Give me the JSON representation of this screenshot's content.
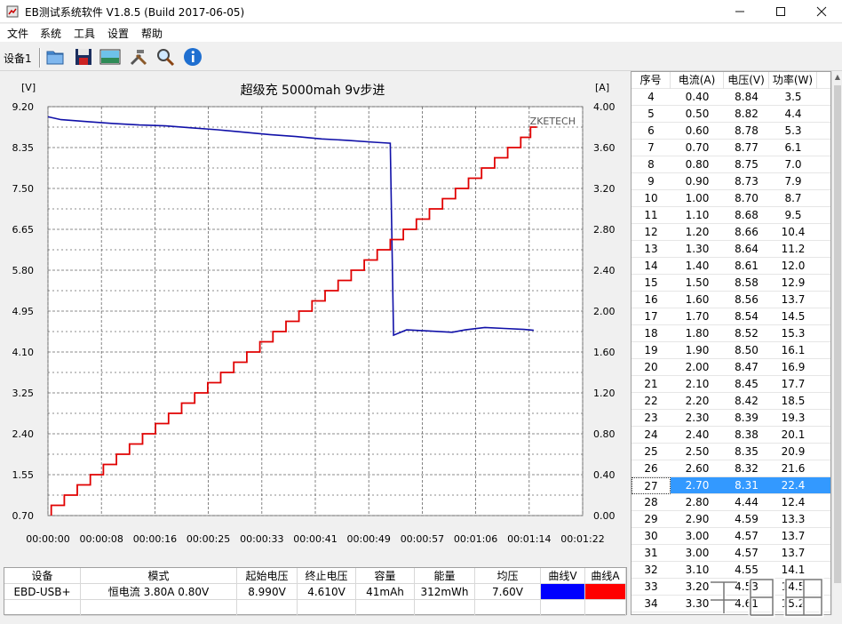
{
  "window": {
    "title": "EB测试系统软件 V1.8.5 (Build 2017-06-05)",
    "min_icon": "minimize-icon",
    "max_icon": "maximize-icon",
    "close_icon": "close-icon"
  },
  "menu": [
    "文件",
    "系统",
    "工具",
    "设置",
    "帮助"
  ],
  "toolbar": {
    "device_tab": "设备1",
    "tools": [
      "open-folder-icon",
      "save-disk-icon",
      "chart-picture-icon",
      "tools-icon",
      "search-icon",
      "info-icon"
    ]
  },
  "chart": {
    "brand": "ZKETECH",
    "colors": {
      "voltage": "#1010a8",
      "current": "#e00000"
    }
  },
  "chart_data": {
    "type": "line",
    "title": "超级充  5000mah  9v步进",
    "y_left_unit": "[V]",
    "y_right_unit": "[A]",
    "y_left_ticks": [
      "9.20",
      "8.35",
      "7.50",
      "6.65",
      "5.80",
      "4.95",
      "4.10",
      "3.25",
      "2.40",
      "1.55",
      "0.70"
    ],
    "y_right_ticks": [
      "4.00",
      "3.60",
      "3.20",
      "2.80",
      "2.40",
      "2.00",
      "1.60",
      "1.20",
      "0.80",
      "0.40",
      "0.00"
    ],
    "x_ticks": [
      "00:00:00",
      "00:00:08",
      "00:00:16",
      "00:00:25",
      "00:00:33",
      "00:00:41",
      "00:00:49",
      "00:00:57",
      "00:01:06",
      "00:01:14",
      "00:01:22"
    ],
    "ylim_left": [
      0.7,
      9.2
    ],
    "ylim_right": [
      0.0,
      4.0
    ],
    "xlim_seconds": [
      0,
      82
    ],
    "grid": true,
    "series": [
      {
        "name": "曲线V",
        "axis": "left",
        "points": [
          [
            0,
            8.99
          ],
          [
            2,
            8.93
          ],
          [
            6,
            8.89
          ],
          [
            10,
            8.85
          ],
          [
            14,
            8.82
          ],
          [
            18,
            8.8
          ],
          [
            22,
            8.76
          ],
          [
            26,
            8.72
          ],
          [
            30,
            8.67
          ],
          [
            34,
            8.62
          ],
          [
            38,
            8.58
          ],
          [
            42,
            8.53
          ],
          [
            46,
            8.5
          ],
          [
            50,
            8.46
          ],
          [
            52.5,
            8.44
          ],
          [
            53,
            4.45
          ],
          [
            55,
            4.56
          ],
          [
            58,
            4.54
          ],
          [
            62,
            4.51
          ],
          [
            64,
            4.56
          ],
          [
            67,
            4.61
          ],
          [
            70,
            4.59
          ],
          [
            73,
            4.57
          ],
          [
            74.5,
            4.55
          ]
        ]
      },
      {
        "name": "曲线A",
        "axis": "right",
        "points": [
          [
            0.5,
            0.0
          ],
          [
            0.5,
            0.1
          ],
          [
            2.5,
            0.2
          ],
          [
            4.5,
            0.3
          ],
          [
            6.5,
            0.4
          ],
          [
            8.5,
            0.5
          ],
          [
            10.5,
            0.6
          ],
          [
            12.5,
            0.7
          ],
          [
            14.5,
            0.8
          ],
          [
            16.5,
            0.9
          ],
          [
            18.5,
            1.0
          ],
          [
            20.5,
            1.1
          ],
          [
            22.5,
            1.2
          ],
          [
            24.5,
            1.3
          ],
          [
            26.5,
            1.4
          ],
          [
            28.5,
            1.5
          ],
          [
            30.5,
            1.6
          ],
          [
            32.5,
            1.7
          ],
          [
            34.5,
            1.8
          ],
          [
            36.5,
            1.9
          ],
          [
            38.5,
            2.0
          ],
          [
            40.5,
            2.1
          ],
          [
            42.5,
            2.2
          ],
          [
            44.5,
            2.3
          ],
          [
            46.5,
            2.4
          ],
          [
            48.5,
            2.5
          ],
          [
            50.5,
            2.6
          ],
          [
            52.5,
            2.7
          ],
          [
            54.5,
            2.8
          ],
          [
            56.5,
            2.9
          ],
          [
            58.5,
            3.0
          ],
          [
            60.5,
            3.1
          ],
          [
            62.5,
            3.2
          ],
          [
            64.5,
            3.3
          ],
          [
            66.5,
            3.4
          ],
          [
            68.5,
            3.5
          ],
          [
            70.5,
            3.6
          ],
          [
            72.5,
            3.7
          ],
          [
            74.0,
            3.8
          ]
        ]
      }
    ]
  },
  "table": {
    "headers": [
      "序号",
      "电流(A)",
      "电压(V)",
      "功率(W)"
    ],
    "selected_index": "27",
    "rows": [
      [
        "4",
        "0.40",
        "8.84",
        "3.5"
      ],
      [
        "5",
        "0.50",
        "8.82",
        "4.4"
      ],
      [
        "6",
        "0.60",
        "8.78",
        "5.3"
      ],
      [
        "7",
        "0.70",
        "8.77",
        "6.1"
      ],
      [
        "8",
        "0.80",
        "8.75",
        "7.0"
      ],
      [
        "9",
        "0.90",
        "8.73",
        "7.9"
      ],
      [
        "10",
        "1.00",
        "8.70",
        "8.7"
      ],
      [
        "11",
        "1.10",
        "8.68",
        "9.5"
      ],
      [
        "12",
        "1.20",
        "8.66",
        "10.4"
      ],
      [
        "13",
        "1.30",
        "8.64",
        "11.2"
      ],
      [
        "14",
        "1.40",
        "8.61",
        "12.0"
      ],
      [
        "15",
        "1.50",
        "8.58",
        "12.9"
      ],
      [
        "16",
        "1.60",
        "8.56",
        "13.7"
      ],
      [
        "17",
        "1.70",
        "8.54",
        "14.5"
      ],
      [
        "18",
        "1.80",
        "8.52",
        "15.3"
      ],
      [
        "19",
        "1.90",
        "8.50",
        "16.1"
      ],
      [
        "20",
        "2.00",
        "8.47",
        "16.9"
      ],
      [
        "21",
        "2.10",
        "8.45",
        "17.7"
      ],
      [
        "22",
        "2.20",
        "8.42",
        "18.5"
      ],
      [
        "23",
        "2.30",
        "8.39",
        "19.3"
      ],
      [
        "24",
        "2.40",
        "8.38",
        "20.1"
      ],
      [
        "25",
        "2.50",
        "8.35",
        "20.9"
      ],
      [
        "26",
        "2.60",
        "8.32",
        "21.6"
      ],
      [
        "27",
        "2.70",
        "8.31",
        "22.4"
      ],
      [
        "28",
        "2.80",
        "4.44",
        "12.4"
      ],
      [
        "29",
        "2.90",
        "4.59",
        "13.3"
      ],
      [
        "30",
        "3.00",
        "4.57",
        "13.7"
      ],
      [
        "31",
        "3.00",
        "4.57",
        "13.7"
      ],
      [
        "32",
        "3.10",
        "4.55",
        "14.1"
      ],
      [
        "33",
        "3.20",
        "4.53",
        "14.5"
      ],
      [
        "34",
        "3.30",
        "4.61",
        "15.2"
      ]
    ]
  },
  "summary": {
    "headers": [
      "设备",
      "模式",
      "起始电压",
      "终止电压",
      "容量",
      "能量",
      "均压",
      "曲线V",
      "曲线A"
    ],
    "values": [
      "EBD-USB+",
      "恒电流  3.80A  0.80V",
      "8.990V",
      "4.610V",
      "41mAh",
      "312mWh",
      "7.60V"
    ],
    "swatch_v": "#0000ff",
    "swatch_a": "#ff0000"
  }
}
